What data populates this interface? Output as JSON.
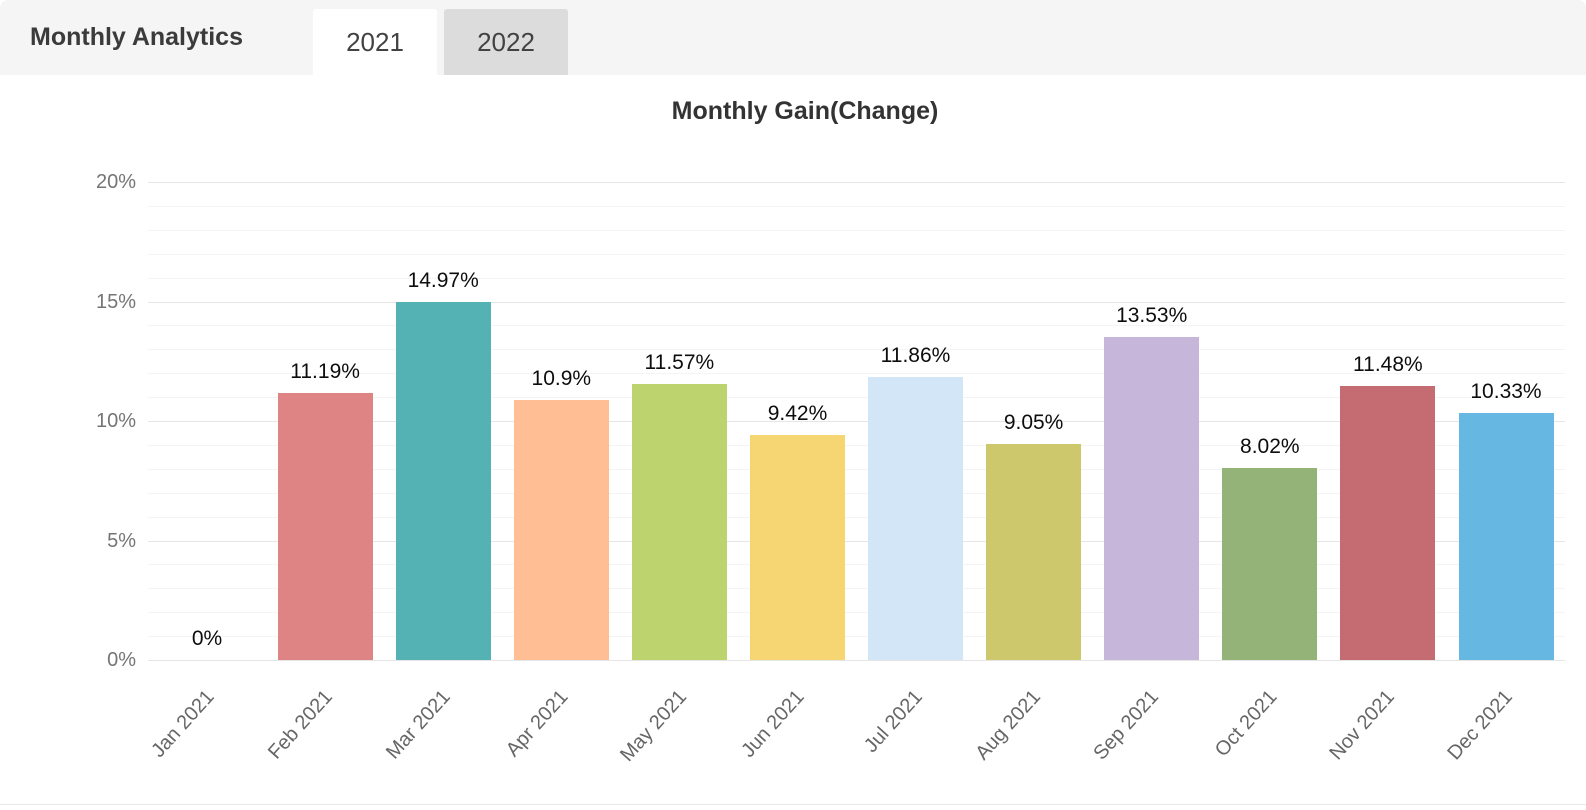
{
  "header": {
    "title": "Monthly Analytics",
    "tabs": [
      {
        "label": "2021",
        "active": true
      },
      {
        "label": "2022",
        "active": false
      }
    ]
  },
  "chart_data": {
    "type": "bar",
    "title": "Monthly Gain(Change)",
    "categories": [
      "Jan 2021",
      "Feb 2021",
      "Mar 2021",
      "Apr 2021",
      "May 2021",
      "Jun 2021",
      "Jul 2021",
      "Aug 2021",
      "Sep 2021",
      "Oct 2021",
      "Nov 2021",
      "Dec 2021"
    ],
    "values": [
      0,
      11.19,
      14.97,
      10.9,
      11.57,
      9.42,
      11.86,
      9.05,
      13.53,
      8.02,
      11.48,
      10.33
    ],
    "value_labels": [
      "0%",
      "11.19%",
      "14.97%",
      "10.9%",
      "11.57%",
      "9.42%",
      "11.86%",
      "9.05%",
      "13.53%",
      "8.02%",
      "11.48%",
      "10.33%"
    ],
    "bar_colors": [
      null,
      "#DE8484",
      "#55B2B4",
      "#FFBE94",
      "#BCD36E",
      "#F5D672",
      "#D3E6F7",
      "#CCC86B",
      "#C6B7DA",
      "#94B379",
      "#C56C72",
      "#67B7E3"
    ],
    "y_ticks": [
      "0%",
      "5%",
      "10%",
      "15%",
      "20%"
    ],
    "ylim": [
      0,
      20
    ],
    "y_major_step": 5,
    "y_minor_step": 1,
    "grid": true,
    "legend": "none",
    "x_tick_rotation_deg": -48
  },
  "colors": {
    "header_bg": "#f5f5f5",
    "tab_active_bg": "#ffffff",
    "tab_inactive_bg": "#dcdcdc",
    "grid_major": "#e6e6e6",
    "grid_minor": "#f4f4f4",
    "axis_label": "#757575",
    "value_label": "#0d0d0d"
  }
}
